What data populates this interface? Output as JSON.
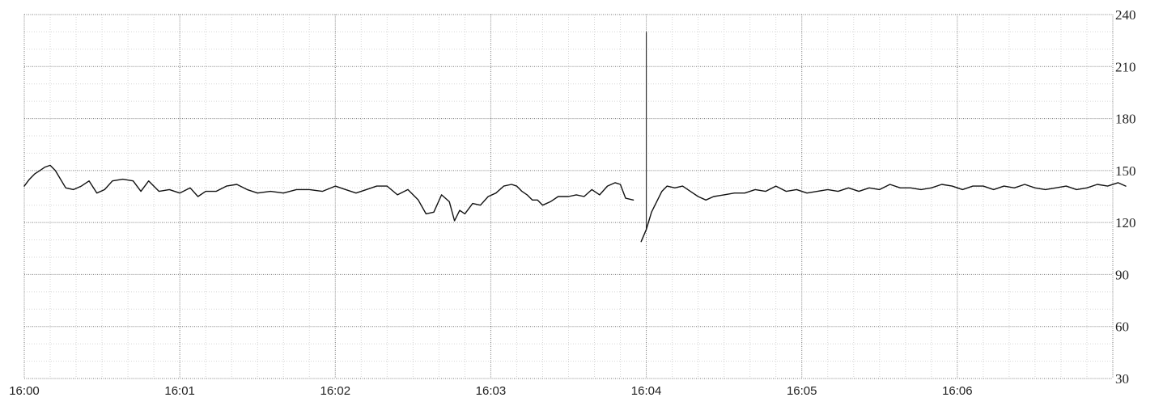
{
  "chart_data": {
    "type": "line",
    "title": "",
    "xlabel": "",
    "ylabel": "",
    "x_unit": "time (HH:MM)",
    "xlim": [
      "16:00",
      "16:07"
    ],
    "ylim": [
      30,
      240
    ],
    "yticks": [
      30,
      60,
      90,
      120,
      150,
      180,
      210,
      240
    ],
    "ytick_labels": [
      "30",
      "60",
      "90",
      "120",
      "150",
      "180",
      "210",
      "240"
    ],
    "xtick_labels": [
      "16:00",
      "16:01",
      "16:02",
      "16:03",
      "16:04",
      "16:05",
      "16:06"
    ],
    "xtick_values": [
      "16:00",
      "16:01",
      "16:02",
      "16:03",
      "16:04",
      "16:05",
      "16:06"
    ],
    "grid": true,
    "minor_grid": true,
    "line_color": "#111111",
    "series": [
      {
        "segments": [
          [
            [
              "16:00:00",
              141
            ],
            [
              "16:00:02",
              145
            ],
            [
              "16:00:04",
              148
            ],
            [
              "16:00:06",
              150
            ],
            [
              "16:00:08",
              152
            ],
            [
              "16:00:10",
              153
            ],
            [
              "16:00:12",
              150
            ],
            [
              "16:00:14",
              145
            ],
            [
              "16:00:16",
              140
            ],
            [
              "16:00:19",
              139
            ],
            [
              "16:00:22",
              141
            ],
            [
              "16:00:25",
              144
            ],
            [
              "16:00:28",
              137
            ],
            [
              "16:00:31",
              139
            ],
            [
              "16:00:34",
              144
            ],
            [
              "16:00:38",
              145
            ],
            [
              "16:00:42",
              144
            ],
            [
              "16:00:45",
              138
            ],
            [
              "16:00:48",
              144
            ],
            [
              "16:00:52",
              138
            ],
            [
              "16:00:56",
              139
            ],
            [
              "16:01:00",
              137
            ],
            [
              "16:01:04",
              140
            ],
            [
              "16:01:07",
              135
            ],
            [
              "16:01:10",
              138
            ],
            [
              "16:01:14",
              138
            ],
            [
              "16:01:18",
              141
            ],
            [
              "16:01:22",
              142
            ],
            [
              "16:01:26",
              139
            ],
            [
              "16:01:30",
              137
            ],
            [
              "16:01:35",
              138
            ],
            [
              "16:01:40",
              137
            ],
            [
              "16:01:45",
              139
            ],
            [
              "16:01:50",
              139
            ],
            [
              "16:01:55",
              138
            ],
            [
              "16:02:00",
              141
            ],
            [
              "16:02:04",
              139
            ],
            [
              "16:02:08",
              137
            ],
            [
              "16:02:12",
              139
            ],
            [
              "16:02:16",
              141
            ],
            [
              "16:02:20",
              141
            ],
            [
              "16:02:24",
              136
            ],
            [
              "16:02:28",
              139
            ],
            [
              "16:02:32",
              133
            ],
            [
              "16:02:35",
              125
            ],
            [
              "16:02:38",
              126
            ],
            [
              "16:02:41",
              136
            ],
            [
              "16:02:44",
              132
            ],
            [
              "16:02:46",
              121
            ],
            [
              "16:02:48",
              127
            ],
            [
              "16:02:50",
              125
            ],
            [
              "16:02:53",
              131
            ],
            [
              "16:02:56",
              130
            ],
            [
              "16:02:59",
              135
            ],
            [
              "16:03:02",
              137
            ],
            [
              "16:03:05",
              141
            ],
            [
              "16:03:08",
              142
            ],
            [
              "16:03:10",
              141
            ],
            [
              "16:03:12",
              138
            ],
            [
              "16:03:14",
              136
            ],
            [
              "16:03:16",
              133
            ],
            [
              "16:03:18",
              133
            ],
            [
              "16:03:20",
              130
            ],
            [
              "16:03:23",
              132
            ],
            [
              "16:03:26",
              135
            ],
            [
              "16:03:30",
              135
            ],
            [
              "16:03:33",
              136
            ],
            [
              "16:03:36",
              135
            ],
            [
              "16:03:39",
              139
            ],
            [
              "16:03:42",
              136
            ],
            [
              "16:03:45",
              141
            ],
            [
              "16:03:48",
              143
            ],
            [
              "16:03:50",
              142
            ],
            [
              "16:03:52",
              134
            ],
            [
              "16:03:55",
              133
            ]
          ],
          [
            [
              "16:03:58",
              109
            ],
            [
              "16:04:00",
              116
            ],
            [
              "16:04:02",
              126
            ],
            [
              "16:04:04",
              132
            ],
            [
              "16:04:06",
              138
            ],
            [
              "16:04:08",
              141
            ],
            [
              "16:04:11",
              140
            ],
            [
              "16:04:14",
              141
            ],
            [
              "16:04:17",
              138
            ],
            [
              "16:04:20",
              135
            ],
            [
              "16:04:23",
              133
            ],
            [
              "16:04:26",
              135
            ],
            [
              "16:04:30",
              136
            ],
            [
              "16:04:34",
              137
            ],
            [
              "16:04:38",
              137
            ],
            [
              "16:04:42",
              139
            ],
            [
              "16:04:46",
              138
            ],
            [
              "16:04:50",
              141
            ],
            [
              "16:04:54",
              138
            ],
            [
              "16:04:58",
              139
            ],
            [
              "16:05:02",
              137
            ],
            [
              "16:05:06",
              138
            ],
            [
              "16:05:10",
              139
            ],
            [
              "16:05:14",
              138
            ],
            [
              "16:05:18",
              140
            ],
            [
              "16:05:22",
              138
            ],
            [
              "16:05:26",
              140
            ],
            [
              "16:05:30",
              139
            ],
            [
              "16:05:34",
              142
            ],
            [
              "16:05:38",
              140
            ],
            [
              "16:05:42",
              140
            ],
            [
              "16:05:46",
              139
            ],
            [
              "16:05:50",
              140
            ],
            [
              "16:05:54",
              142
            ],
            [
              "16:05:58",
              141
            ],
            [
              "16:06:02",
              139
            ],
            [
              "16:06:06",
              141
            ],
            [
              "16:06:10",
              141
            ],
            [
              "16:06:14",
              139
            ],
            [
              "16:06:18",
              141
            ],
            [
              "16:06:22",
              140
            ],
            [
              "16:06:26",
              142
            ],
            [
              "16:06:30",
              140
            ],
            [
              "16:06:34",
              139
            ],
            [
              "16:06:38",
              140
            ],
            [
              "16:06:42",
              141
            ],
            [
              "16:06:46",
              139
            ],
            [
              "16:06:50",
              140
            ],
            [
              "16:06:54",
              142
            ],
            [
              "16:06:58",
              141
            ],
            [
              "16:07:02",
              143
            ],
            [
              "16:07:05",
              141
            ]
          ]
        ]
      }
    ],
    "annotations": [
      {
        "x": "16:04",
        "y_from": 116,
        "y_to": 230,
        "kind": "vertical-mark"
      }
    ]
  }
}
